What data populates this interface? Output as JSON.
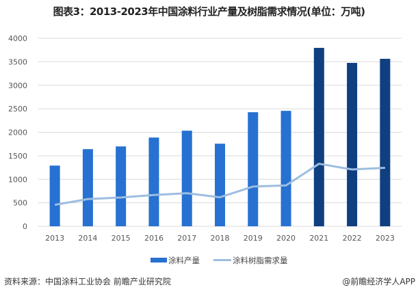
{
  "title": "图表3：2013-2023年中国涂料行业产量及树脂需求情况(单位：万吨)",
  "source": "资料来源：中国涂料工业协会 前瞻产业研究院",
  "credit": "@前瞻经济学人APP",
  "colors": {
    "bar": "#2671d1",
    "bar_forecast": "#0f3f80",
    "line": "#9dbde0",
    "grid": "#d9d9d9"
  },
  "chart_data": {
    "type": "bar",
    "title": "图表3：2013-2023年中国涂料行业产量及树脂需求情况(单位：万吨)",
    "categories": [
      "2013",
      "2014",
      "2015",
      "2016",
      "2017",
      "2018",
      "2019",
      "2020",
      "2021",
      "2022",
      "2023"
    ],
    "yticks": [
      "0",
      "500",
      "1000",
      "1500",
      "2000",
      "2500",
      "3000",
      "3500",
      "4000"
    ],
    "ylim": [
      0,
      4000
    ],
    "grid": true,
    "legend_position": "bottom",
    "series": [
      {
        "name": "涂料产量",
        "type": "bar",
        "values": [
          1291,
          1641,
          1699,
          1888,
          2034,
          1757,
          2427,
          2456,
          3796,
          3476,
          3563
        ]
      },
      {
        "name": "涂料树脂需求量",
        "type": "line",
        "values": [
          456,
          578,
          612,
          665,
          704,
          617,
          845,
          869,
          1330,
          1209,
          1243
        ]
      }
    ]
  }
}
